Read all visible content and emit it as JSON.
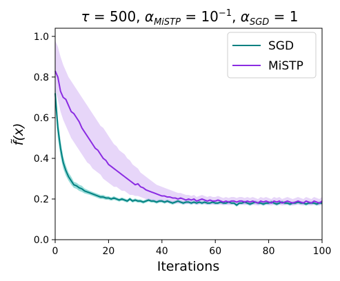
{
  "chart_data": {
    "type": "line",
    "title": "τ = 500, α_MiSTP = 10⁻¹, α_SGD = 1",
    "title_parts": {
      "tau": "τ",
      "tau_value": " = 500, ",
      "alpha1": "α",
      "alpha1_sub": "MiSTP",
      "alpha1_eq": " = 10",
      "alpha1_exp": "−1",
      "sep": ", ",
      "alpha2": "α",
      "alpha2_sub": "SGD",
      "alpha2_eq": " = 1"
    },
    "xlabel": "Iterations",
    "ylabel": "f̃(x)",
    "xlim": [
      0,
      100
    ],
    "ylim": [
      0.0,
      1.04
    ],
    "xticks": [
      0,
      20,
      40,
      60,
      80,
      100
    ],
    "xtick_labels": [
      "0",
      "20",
      "40",
      "60",
      "80",
      "100"
    ],
    "yticks": [
      0.0,
      0.2,
      0.4,
      0.6,
      0.8,
      1.0
    ],
    "ytick_labels": [
      "0.0",
      "0.2",
      "0.4",
      "0.6",
      "0.8",
      "1.0"
    ],
    "grid": false,
    "legend_position": "top-right",
    "x": [
      0,
      1,
      2,
      3,
      4,
      5,
      6,
      7,
      8,
      9,
      10,
      11,
      12,
      13,
      14,
      15,
      16,
      17,
      18,
      19,
      20,
      21,
      22,
      23,
      24,
      25,
      26,
      27,
      28,
      29,
      30,
      31,
      32,
      33,
      34,
      35,
      36,
      37,
      38,
      39,
      40,
      41,
      42,
      43,
      44,
      45,
      46,
      47,
      48,
      49,
      50,
      51,
      52,
      53,
      54,
      55,
      56,
      57,
      58,
      59,
      60,
      61,
      62,
      63,
      64,
      65,
      66,
      67,
      68,
      69,
      70,
      71,
      72,
      73,
      74,
      75,
      76,
      77,
      78,
      79,
      80,
      81,
      82,
      83,
      84,
      85,
      86,
      87,
      88,
      89,
      90,
      91,
      92,
      93,
      94,
      95,
      96,
      97,
      98,
      99,
      100
    ],
    "series": [
      {
        "name": "SGD",
        "color": "#008080",
        "band_color": "#20b2aa",
        "values": [
          0.72,
          0.55,
          0.45,
          0.38,
          0.34,
          0.31,
          0.29,
          0.27,
          0.265,
          0.255,
          0.25,
          0.24,
          0.235,
          0.23,
          0.225,
          0.22,
          0.215,
          0.21,
          0.21,
          0.205,
          0.205,
          0.2,
          0.205,
          0.2,
          0.195,
          0.2,
          0.195,
          0.19,
          0.2,
          0.19,
          0.195,
          0.19,
          0.19,
          0.185,
          0.19,
          0.195,
          0.19,
          0.19,
          0.185,
          0.19,
          0.19,
          0.185,
          0.19,
          0.185,
          0.18,
          0.185,
          0.19,
          0.185,
          0.18,
          0.185,
          0.185,
          0.18,
          0.185,
          0.18,
          0.185,
          0.18,
          0.185,
          0.18,
          0.18,
          0.185,
          0.18,
          0.18,
          0.185,
          0.18,
          0.18,
          0.185,
          0.18,
          0.18,
          0.17,
          0.18,
          0.18,
          0.185,
          0.18,
          0.175,
          0.18,
          0.185,
          0.18,
          0.18,
          0.175,
          0.18,
          0.18,
          0.185,
          0.18,
          0.175,
          0.18,
          0.185,
          0.18,
          0.18,
          0.175,
          0.18,
          0.18,
          0.185,
          0.18,
          0.18,
          0.175,
          0.18,
          0.18,
          0.18,
          0.175,
          0.18,
          0.18
        ],
        "lower": [
          0.66,
          0.5,
          0.41,
          0.35,
          0.315,
          0.29,
          0.27,
          0.255,
          0.25,
          0.24,
          0.235,
          0.228,
          0.224,
          0.22,
          0.215,
          0.21,
          0.205,
          0.2,
          0.2,
          0.196,
          0.196,
          0.192,
          0.196,
          0.192,
          0.187,
          0.192,
          0.187,
          0.182,
          0.192,
          0.182,
          0.187,
          0.182,
          0.182,
          0.177,
          0.182,
          0.187,
          0.182,
          0.182,
          0.177,
          0.182,
          0.182,
          0.177,
          0.182,
          0.177,
          0.172,
          0.177,
          0.182,
          0.177,
          0.172,
          0.177,
          0.177,
          0.172,
          0.177,
          0.172,
          0.177,
          0.172,
          0.177,
          0.172,
          0.172,
          0.177,
          0.172,
          0.172,
          0.177,
          0.172,
          0.172,
          0.177,
          0.172,
          0.172,
          0.162,
          0.172,
          0.172,
          0.177,
          0.172,
          0.167,
          0.172,
          0.177,
          0.172,
          0.172,
          0.167,
          0.172,
          0.172,
          0.177,
          0.172,
          0.167,
          0.172,
          0.177,
          0.172,
          0.172,
          0.167,
          0.172,
          0.172,
          0.177,
          0.172,
          0.172,
          0.167,
          0.172,
          0.172,
          0.172,
          0.167,
          0.172,
          0.172
        ],
        "upper": [
          0.78,
          0.6,
          0.49,
          0.41,
          0.365,
          0.33,
          0.31,
          0.285,
          0.28,
          0.27,
          0.265,
          0.252,
          0.246,
          0.24,
          0.235,
          0.23,
          0.225,
          0.22,
          0.22,
          0.214,
          0.214,
          0.208,
          0.214,
          0.208,
          0.203,
          0.208,
          0.203,
          0.198,
          0.208,
          0.198,
          0.203,
          0.198,
          0.198,
          0.193,
          0.198,
          0.203,
          0.198,
          0.198,
          0.193,
          0.198,
          0.198,
          0.193,
          0.198,
          0.193,
          0.188,
          0.193,
          0.198,
          0.193,
          0.188,
          0.193,
          0.193,
          0.188,
          0.193,
          0.188,
          0.193,
          0.188,
          0.193,
          0.188,
          0.188,
          0.193,
          0.188,
          0.188,
          0.193,
          0.188,
          0.188,
          0.193,
          0.188,
          0.188,
          0.178,
          0.188,
          0.188,
          0.193,
          0.188,
          0.183,
          0.188,
          0.193,
          0.188,
          0.188,
          0.183,
          0.188,
          0.188,
          0.193,
          0.188,
          0.183,
          0.188,
          0.193,
          0.188,
          0.188,
          0.183,
          0.188,
          0.188,
          0.193,
          0.188,
          0.188,
          0.183,
          0.188,
          0.188,
          0.188,
          0.183,
          0.188,
          0.188
        ]
      },
      {
        "name": "MiSTP",
        "color": "#8a2be2",
        "band_color": "#c9a5f2",
        "values": [
          0.83,
          0.8,
          0.73,
          0.7,
          0.69,
          0.66,
          0.63,
          0.62,
          0.6,
          0.58,
          0.55,
          0.53,
          0.51,
          0.49,
          0.47,
          0.45,
          0.44,
          0.42,
          0.4,
          0.39,
          0.37,
          0.36,
          0.35,
          0.34,
          0.33,
          0.32,
          0.31,
          0.3,
          0.29,
          0.28,
          0.27,
          0.275,
          0.26,
          0.255,
          0.245,
          0.24,
          0.235,
          0.23,
          0.225,
          0.22,
          0.215,
          0.215,
          0.21,
          0.21,
          0.205,
          0.205,
          0.2,
          0.205,
          0.2,
          0.195,
          0.2,
          0.195,
          0.2,
          0.19,
          0.195,
          0.2,
          0.195,
          0.19,
          0.195,
          0.19,
          0.19,
          0.195,
          0.19,
          0.185,
          0.19,
          0.185,
          0.19,
          0.19,
          0.185,
          0.19,
          0.19,
          0.185,
          0.19,
          0.185,
          0.19,
          0.185,
          0.18,
          0.19,
          0.185,
          0.19,
          0.185,
          0.18,
          0.19,
          0.185,
          0.19,
          0.18,
          0.185,
          0.19,
          0.185,
          0.18,
          0.185,
          0.19,
          0.185,
          0.18,
          0.19,
          0.185,
          0.18,
          0.19,
          0.185,
          0.18,
          0.19
        ],
        "lower": [
          0.74,
          0.69,
          0.63,
          0.59,
          0.56,
          0.53,
          0.5,
          0.48,
          0.46,
          0.44,
          0.42,
          0.4,
          0.38,
          0.37,
          0.35,
          0.34,
          0.33,
          0.32,
          0.3,
          0.29,
          0.28,
          0.27,
          0.26,
          0.26,
          0.25,
          0.24,
          0.24,
          0.23,
          0.22,
          0.22,
          0.215,
          0.215,
          0.21,
          0.205,
          0.2,
          0.195,
          0.195,
          0.19,
          0.19,
          0.185,
          0.185,
          0.183,
          0.182,
          0.18,
          0.18,
          0.178,
          0.178,
          0.178,
          0.176,
          0.175,
          0.176,
          0.175,
          0.176,
          0.172,
          0.174,
          0.176,
          0.174,
          0.172,
          0.174,
          0.172,
          0.172,
          0.174,
          0.172,
          0.17,
          0.172,
          0.17,
          0.172,
          0.172,
          0.17,
          0.172,
          0.172,
          0.17,
          0.172,
          0.17,
          0.172,
          0.17,
          0.168,
          0.172,
          0.17,
          0.172,
          0.17,
          0.168,
          0.172,
          0.17,
          0.172,
          0.168,
          0.17,
          0.172,
          0.17,
          0.168,
          0.17,
          0.172,
          0.17,
          0.168,
          0.172,
          0.17,
          0.168,
          0.172,
          0.17,
          0.168,
          0.172
        ],
        "upper": [
          0.98,
          0.95,
          0.9,
          0.86,
          0.83,
          0.8,
          0.78,
          0.76,
          0.74,
          0.72,
          0.7,
          0.68,
          0.66,
          0.64,
          0.62,
          0.6,
          0.58,
          0.56,
          0.55,
          0.53,
          0.51,
          0.49,
          0.47,
          0.46,
          0.44,
          0.43,
          0.42,
          0.4,
          0.39,
          0.37,
          0.36,
          0.35,
          0.33,
          0.32,
          0.31,
          0.3,
          0.29,
          0.28,
          0.27,
          0.265,
          0.26,
          0.255,
          0.25,
          0.245,
          0.24,
          0.235,
          0.23,
          0.23,
          0.225,
          0.22,
          0.22,
          0.215,
          0.22,
          0.21,
          0.215,
          0.22,
          0.215,
          0.21,
          0.215,
          0.21,
          0.21,
          0.215,
          0.21,
          0.205,
          0.21,
          0.205,
          0.21,
          0.21,
          0.205,
          0.21,
          0.21,
          0.205,
          0.21,
          0.205,
          0.21,
          0.205,
          0.2,
          0.21,
          0.205,
          0.21,
          0.205,
          0.2,
          0.21,
          0.205,
          0.21,
          0.2,
          0.205,
          0.21,
          0.205,
          0.2,
          0.205,
          0.21,
          0.205,
          0.2,
          0.21,
          0.205,
          0.2,
          0.21,
          0.205,
          0.2,
          0.21
        ]
      }
    ]
  }
}
